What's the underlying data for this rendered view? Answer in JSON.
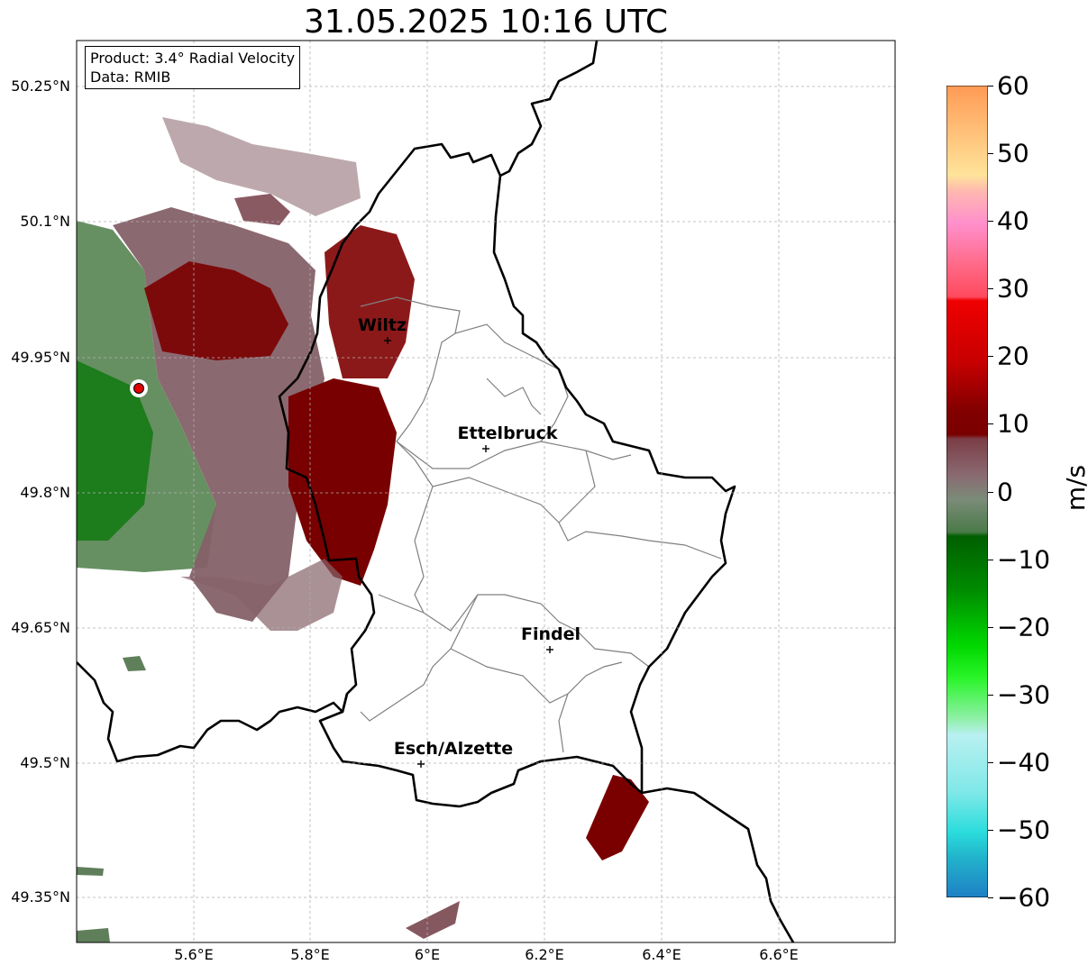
{
  "title": "31.05.2025 10:16 UTC",
  "info": {
    "product": "Product: 3.4° Radial Velocity",
    "data": "Data: RMIB"
  },
  "axes": {
    "lat_labels": [
      "50.25°N",
      "50.1°N",
      "49.95°N",
      "49.8°N",
      "49.65°N",
      "49.5°N",
      "49.35°N"
    ],
    "lon_labels": [
      "5.6°E",
      "5.8°E",
      "6°E",
      "6.2°E",
      "6.4°E",
      "6.6°E"
    ]
  },
  "colorbar": {
    "unit": "m/s",
    "ticks": [
      "60",
      "50",
      "40",
      "30",
      "20",
      "10",
      "0",
      "−10",
      "−20",
      "−30",
      "−40",
      "−50",
      "−60"
    ],
    "min": -60,
    "max": 60
  },
  "cities": [
    {
      "name": "Wiltz"
    },
    {
      "name": "Ettelbruck"
    },
    {
      "name": "Findel"
    },
    {
      "name": "Esch/Alzette"
    }
  ],
  "colors": {
    "inbound_strong": "#1f7fc0",
    "inbound_green": "#007a00",
    "zero_gray_green": "#6a8a68",
    "zero_mauve": "#876268",
    "outbound_darkred": "#7a0000",
    "outbound_red": "#e00000",
    "outbound_pink": "#ff8ec8",
    "outbound_orange": "#ff9f5a",
    "radar_site": "#e00000"
  }
}
